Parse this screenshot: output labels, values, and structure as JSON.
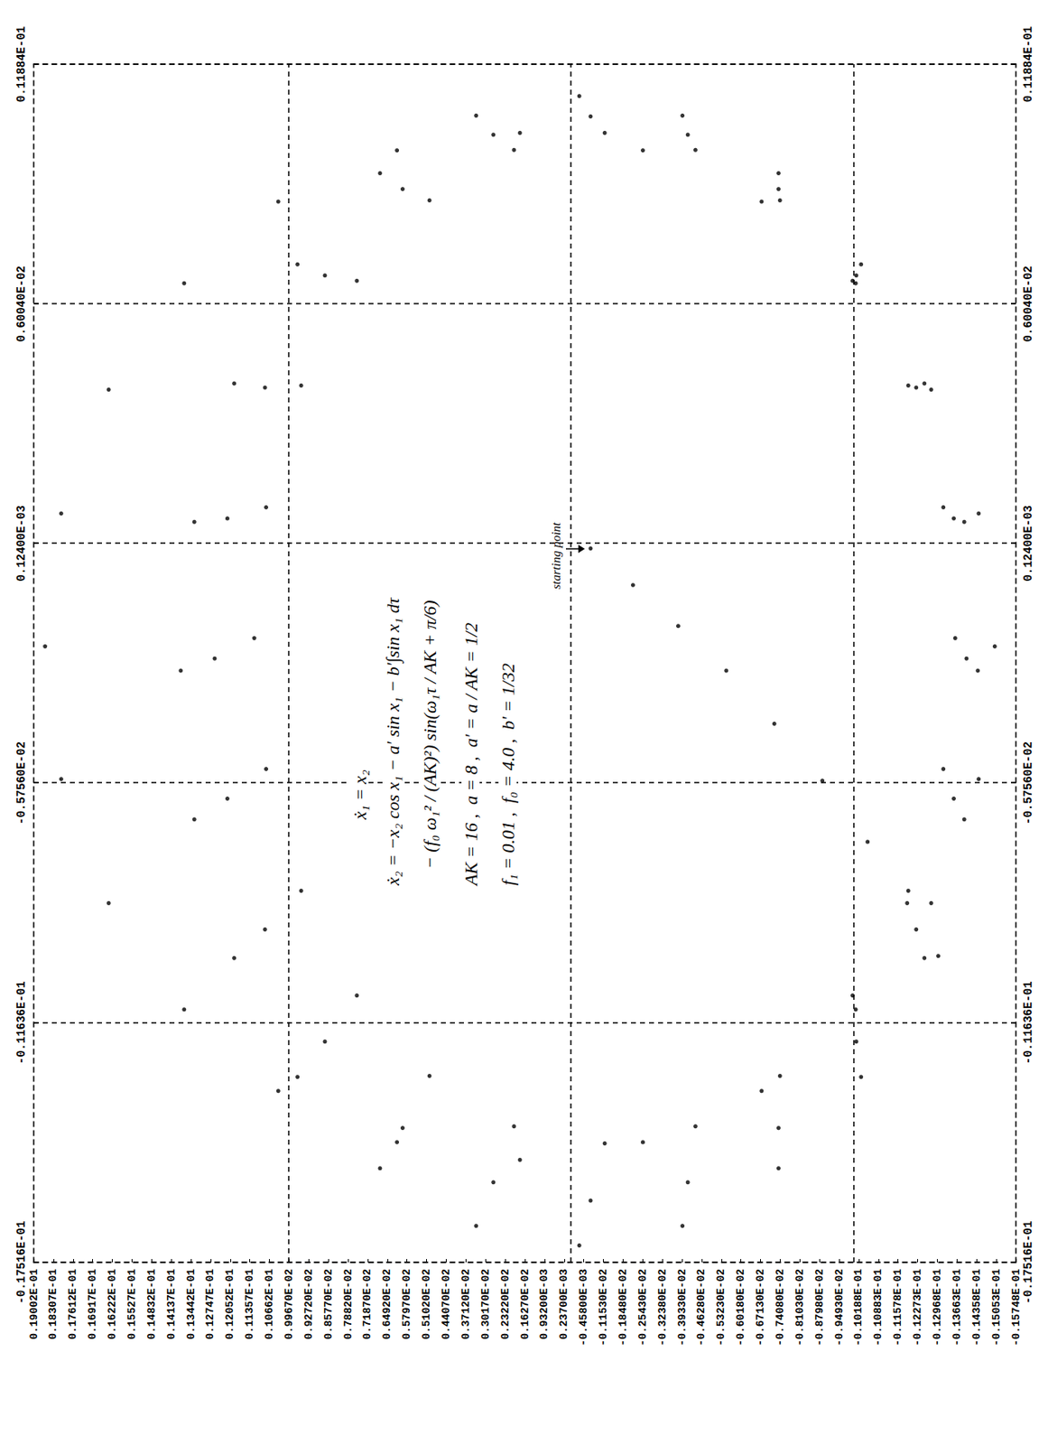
{
  "chart_data": {
    "type": "scatter",
    "annotations": [
      "ẋ₁ = x₂",
      "ẋ₂ = −x₂ cos x₁ − a′ sin x₁ − b′∫sin x₁ dτ",
      "− (f₀ ω₁² / (AK)²) sin(ω₁τ / AK + π/6)",
      "AK = 16 ,  a = 8 ,  a′ = a / AK = 1/2",
      "f₁ = 0.01 ,  f₀ = 4.0 ,  b′ = 1/32",
      "starting point"
    ],
    "x": [
      0.0,
      -0.0009,
      -0.0019,
      -0.003,
      -0.0043,
      -0.0057,
      -0.0072,
      -0.0087,
      -0.01,
      0.0106,
      0.01015,
      0.00882,
      0.0067,
      0.00395,
      0.00074,
      -0.0027,
      -0.00614,
      -0.00935,
      -0.0121,
      -0.01422,
      -0.01555,
      -0.016,
      -0.01555,
      -0.01422,
      -0.0121,
      -0.00935,
      -0.00614,
      -0.0027,
      0.00074,
      0.00395,
      0.0067,
      0.00882,
      0.01015,
      0.0102,
      0.00978,
      0.00854,
      0.00657,
      0.004,
      0.00101,
      -0.0022,
      -0.00541,
      -0.0084,
      -0.01097,
      -0.01294,
      -0.01418,
      -0.0146,
      -0.01418,
      -0.01294,
      -0.01097,
      -0.0084,
      -0.00541,
      -0.0022,
      0.00101,
      0.004,
      0.00657,
      0.00854,
      0.00978,
      0.0111,
      0.01062,
      0.00921,
      0.00697,
      0.00405,
      0.00065,
      -0.003,
      -0.00665,
      -0.01005,
      -0.01297,
      -0.01521,
      -0.01662,
      -0.0171,
      -0.01662,
      -0.01521,
      -0.01297,
      -0.01005,
      -0.00665,
      -0.003,
      0.00065,
      0.00405,
      0.00697,
      0.00921,
      0.01062,
      0.0102,
      0.00977,
      0.00851,
      0.00651,
      0.0039,
      0.00086,
      -0.0024,
      -0.00566,
      -0.0087,
      -0.01131,
      -0.01331,
      -0.01457,
      -0.015,
      -0.01457,
      -0.01331,
      -0.01131,
      -0.0087,
      -0.00566,
      -0.0024,
      0.00086,
      0.0039,
      0.00651,
      0.00851,
      0.00977
    ],
    "values": [
      -0.0007,
      -0.0022,
      -0.0038,
      -0.0055,
      -0.0072,
      -0.0089,
      -0.0105,
      -0.0119,
      -0.013,
      -0.0007,
      0.00274,
      0.00595,
      0.0087,
      0.01082,
      0.01215,
      0.0126,
      0.01215,
      0.01082,
      0.0087,
      0.00595,
      0.00274,
      -0.0007,
      -0.00414,
      -0.00735,
      -0.0101,
      -0.01222,
      -0.01355,
      -0.014,
      -0.01355,
      -0.01222,
      -0.0101,
      -0.00735,
      -0.00414,
      -0.0012,
      0.00201,
      0.005,
      0.00757,
      0.00954,
      0.01078,
      0.0112,
      0.01078,
      0.00954,
      0.00757,
      0.005,
      0.00201,
      -0.0012,
      -0.00441,
      -0.0074,
      -0.00997,
      -0.01194,
      -0.01318,
      -0.0136,
      -0.01318,
      -0.01194,
      -0.00997,
      -0.0074,
      -0.00441,
      -0.0003,
      0.00335,
      0.00675,
      0.00967,
      0.01191,
      0.01332,
      0.0138,
      0.01332,
      0.01191,
      0.00967,
      0.00675,
      0.00335,
      -0.0003,
      -0.00395,
      -0.00735,
      -0.01027,
      -0.01251,
      -0.01392,
      -0.0144,
      -0.01392,
      -0.01251,
      -0.01027,
      -0.00735,
      -0.00395,
      0.0018,
      0.00615,
      0.01035,
      0.01368,
      0.01635,
      0.01803,
      0.0186,
      0.01803,
      0.01635,
      0.01368,
      0.01035,
      0.00615,
      0.0018,
      -0.00255,
      -0.00675,
      -0.01008,
      -0.01275,
      -0.01443,
      -0.015,
      -0.01443,
      -0.01275,
      -0.01008,
      -0.00675,
      -0.00255
    ],
    "xlim": [
      -0.017516,
      0.011884
    ],
    "ylim": [
      -0.015748,
      0.019002
    ],
    "xticks": [
      {
        "value": -0.017516,
        "label": "-0.17516E-01"
      },
      {
        "value": -0.011636,
        "label": "-0.11636E-01"
      },
      {
        "value": -0.005756,
        "label": "-0.57560E-02"
      },
      {
        "value": 0.000124,
        "label": "0.12400E-03"
      },
      {
        "value": 0.006004,
        "label": "0.60040E-02"
      },
      {
        "value": 0.011884,
        "label": "0.11884E-01"
      }
    ],
    "yticks": [
      {
        "value": 0.019002,
        "label": "0.19002E-01"
      },
      {
        "value": 0.018307,
        "label": "0.18307E-01"
      },
      {
        "value": 0.017612,
        "label": "0.17612E-01"
      },
      {
        "value": 0.016917,
        "label": "0.16917E-01"
      },
      {
        "value": 0.016222,
        "label": "0.16222E-01"
      },
      {
        "value": 0.015527,
        "label": "0.15527E-01"
      },
      {
        "value": 0.014832,
        "label": "0.14832E-01"
      },
      {
        "value": 0.014137,
        "label": "0.14137E-01"
      },
      {
        "value": 0.013442,
        "label": "0.13442E-01"
      },
      {
        "value": 0.012747,
        "label": "0.12747E-01"
      },
      {
        "value": 0.012052,
        "label": "0.12052E-01"
      },
      {
        "value": 0.011357,
        "label": "0.11357E-01"
      },
      {
        "value": 0.010662,
        "label": "0.10662E-01"
      },
      {
        "value": 0.009967,
        "label": "0.99670E-02"
      },
      {
        "value": 0.009272,
        "label": "0.92720E-02"
      },
      {
        "value": 0.008577,
        "label": "0.85770E-02"
      },
      {
        "value": 0.007882,
        "label": "0.78820E-02"
      },
      {
        "value": 0.007187,
        "label": "0.71870E-02"
      },
      {
        "value": 0.006492,
        "label": "0.64920E-02"
      },
      {
        "value": 0.005797,
        "label": "0.57970E-02"
      },
      {
        "value": 0.005102,
        "label": "0.51020E-02"
      },
      {
        "value": 0.004407,
        "label": "0.44070E-02"
      },
      {
        "value": 0.003712,
        "label": "0.37120E-02"
      },
      {
        "value": 0.003017,
        "label": "0.30170E-02"
      },
      {
        "value": 0.002322,
        "label": "0.23220E-02"
      },
      {
        "value": 0.001627,
        "label": "0.16270E-02"
      },
      {
        "value": 0.000932,
        "label": "0.93200E-03"
      },
      {
        "value": 0.000237,
        "label": "0.23700E-03"
      },
      {
        "value": -0.000458,
        "label": "-0.45800E-03"
      },
      {
        "value": -0.001153,
        "label": "-0.11530E-02"
      },
      {
        "value": -0.001848,
        "label": "-0.18480E-02"
      },
      {
        "value": -0.002543,
        "label": "-0.25430E-02"
      },
      {
        "value": -0.003238,
        "label": "-0.32380E-02"
      },
      {
        "value": -0.003933,
        "label": "-0.39330E-02"
      },
      {
        "value": -0.004628,
        "label": "-0.46280E-02"
      },
      {
        "value": -0.005323,
        "label": "-0.53230E-02"
      },
      {
        "value": -0.006018,
        "label": "-0.60180E-02"
      },
      {
        "value": -0.006713,
        "label": "-0.67130E-02"
      },
      {
        "value": -0.007408,
        "label": "-0.74080E-02"
      },
      {
        "value": -0.008103,
        "label": "-0.81030E-02"
      },
      {
        "value": -0.008798,
        "label": "-0.87980E-02"
      },
      {
        "value": -0.009493,
        "label": "-0.94930E-02"
      },
      {
        "value": -0.010188,
        "label": "-0.10188E-01"
      },
      {
        "value": -0.010883,
        "label": "-0.10883E-01"
      },
      {
        "value": -0.011578,
        "label": "-0.11578E-01"
      },
      {
        "value": -0.012273,
        "label": "-0.12273E-01"
      },
      {
        "value": -0.012968,
        "label": "-0.12968E-01"
      },
      {
        "value": -0.013663,
        "label": "-0.13663E-01"
      },
      {
        "value": -0.014358,
        "label": "-0.14358E-01"
      },
      {
        "value": -0.015053,
        "label": "-0.15053E-01"
      },
      {
        "value": -0.015748,
        "label": "-0.15748E-01"
      }
    ],
    "grid": true,
    "marker": "circle",
    "color": "#000000"
  }
}
